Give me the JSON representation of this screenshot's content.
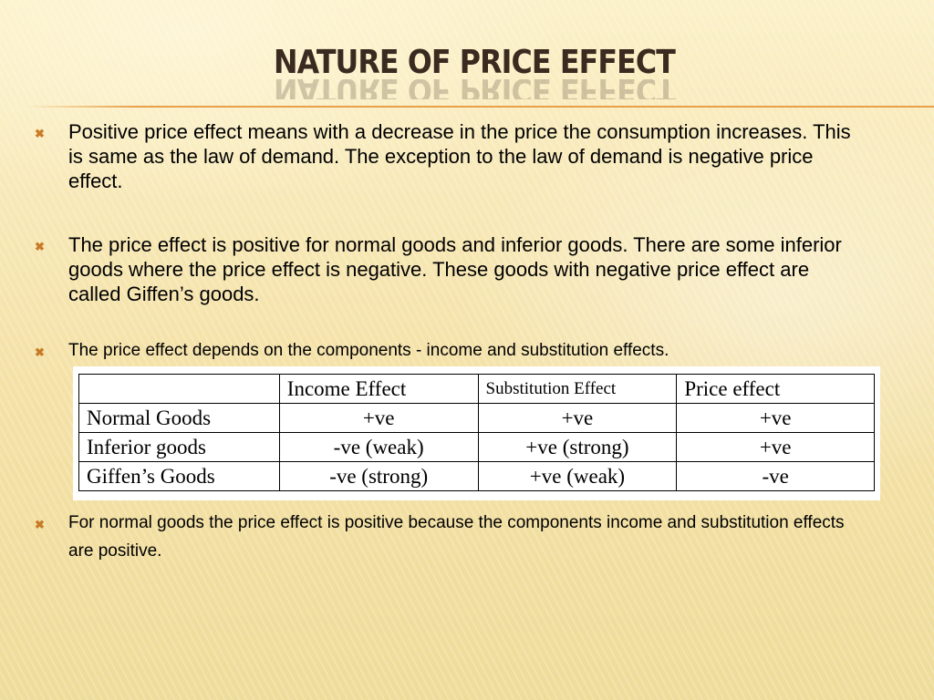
{
  "slide": {
    "title": "NATURE OF PRICE EFFECT",
    "bullet_icon": "x-mark-icon",
    "accent_color": "#c87a26",
    "bullets": [
      "Positive price effect means with a decrease in the price the consumption increases. This is same as the law of demand. The exception to the law of demand is negative price effect.",
      "The price effect is positive for normal goods and inferior goods. There are some inferior goods where the price effect is negative. These goods with negative price effect are called Giffen’s goods.",
      "The price effect depends on the components - income and substitution effects.",
      "For normal goods the price effect is positive because the components income and substitution effects are positive."
    ]
  },
  "table": {
    "headers": [
      "",
      "Income Effect",
      "Substitution Effect",
      "Price effect"
    ],
    "rows": [
      [
        "Normal Goods",
        "+ve",
        "+ve",
        "+ve"
      ],
      [
        "Inferior goods",
        "-ve (weak)",
        "+ve (strong)",
        "+ve"
      ],
      [
        "Giffen’s Goods",
        "-ve (strong)",
        "+ve (weak)",
        "-ve"
      ]
    ]
  }
}
